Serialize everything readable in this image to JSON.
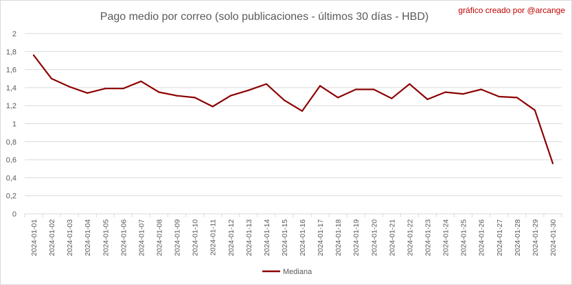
{
  "chart_data": {
    "type": "line",
    "title": "Pago medio por correo (solo publicaciones - últimos 30 días - HBD)",
    "credit": "gráfico creado por @arcange",
    "xlabel": "",
    "ylabel": "",
    "ylim": [
      0,
      2
    ],
    "yticks": [
      0,
      0.2,
      0.4,
      0.6,
      0.8,
      1,
      1.2,
      1.4,
      1.6,
      1.8,
      2
    ],
    "ytick_labels": [
      "0",
      "0,2",
      "0,4",
      "0,6",
      "0,8",
      "1",
      "1,2",
      "1,4",
      "1,6",
      "1,8",
      "2"
    ],
    "grid": true,
    "legend": "bottom",
    "line_color": "#8b0000",
    "categories": [
      "2024-01-01",
      "2024-01-02",
      "2024-01-03",
      "2024-01-04",
      "2024-01-05",
      "2024-01-06",
      "2024-01-07",
      "2024-01-08",
      "2024-01-09",
      "2024-01-10",
      "2024-01-11",
      "2024-01-12",
      "2024-01-13",
      "2024-01-14",
      "2024-01-15",
      "2024-01-16",
      "2024-01-17",
      "2024-01-18",
      "2024-01-19",
      "2024-01-20",
      "2024-01-21",
      "2024-01-22",
      "2024-01-23",
      "2024-01-24",
      "2024-01-25",
      "2024-01-26",
      "2024-01-27",
      "2024-01-28",
      "2024-01-29",
      "2024-01-30"
    ],
    "series": [
      {
        "name": "Mediana",
        "values": [
          1.76,
          1.5,
          1.41,
          1.34,
          1.39,
          1.39,
          1.47,
          1.35,
          1.31,
          1.29,
          1.19,
          1.31,
          1.37,
          1.44,
          1.26,
          1.14,
          1.42,
          1.29,
          1.38,
          1.38,
          1.28,
          1.44,
          1.27,
          1.35,
          1.33,
          1.38,
          1.3,
          1.29,
          1.15,
          0.56
        ]
      }
    ]
  }
}
